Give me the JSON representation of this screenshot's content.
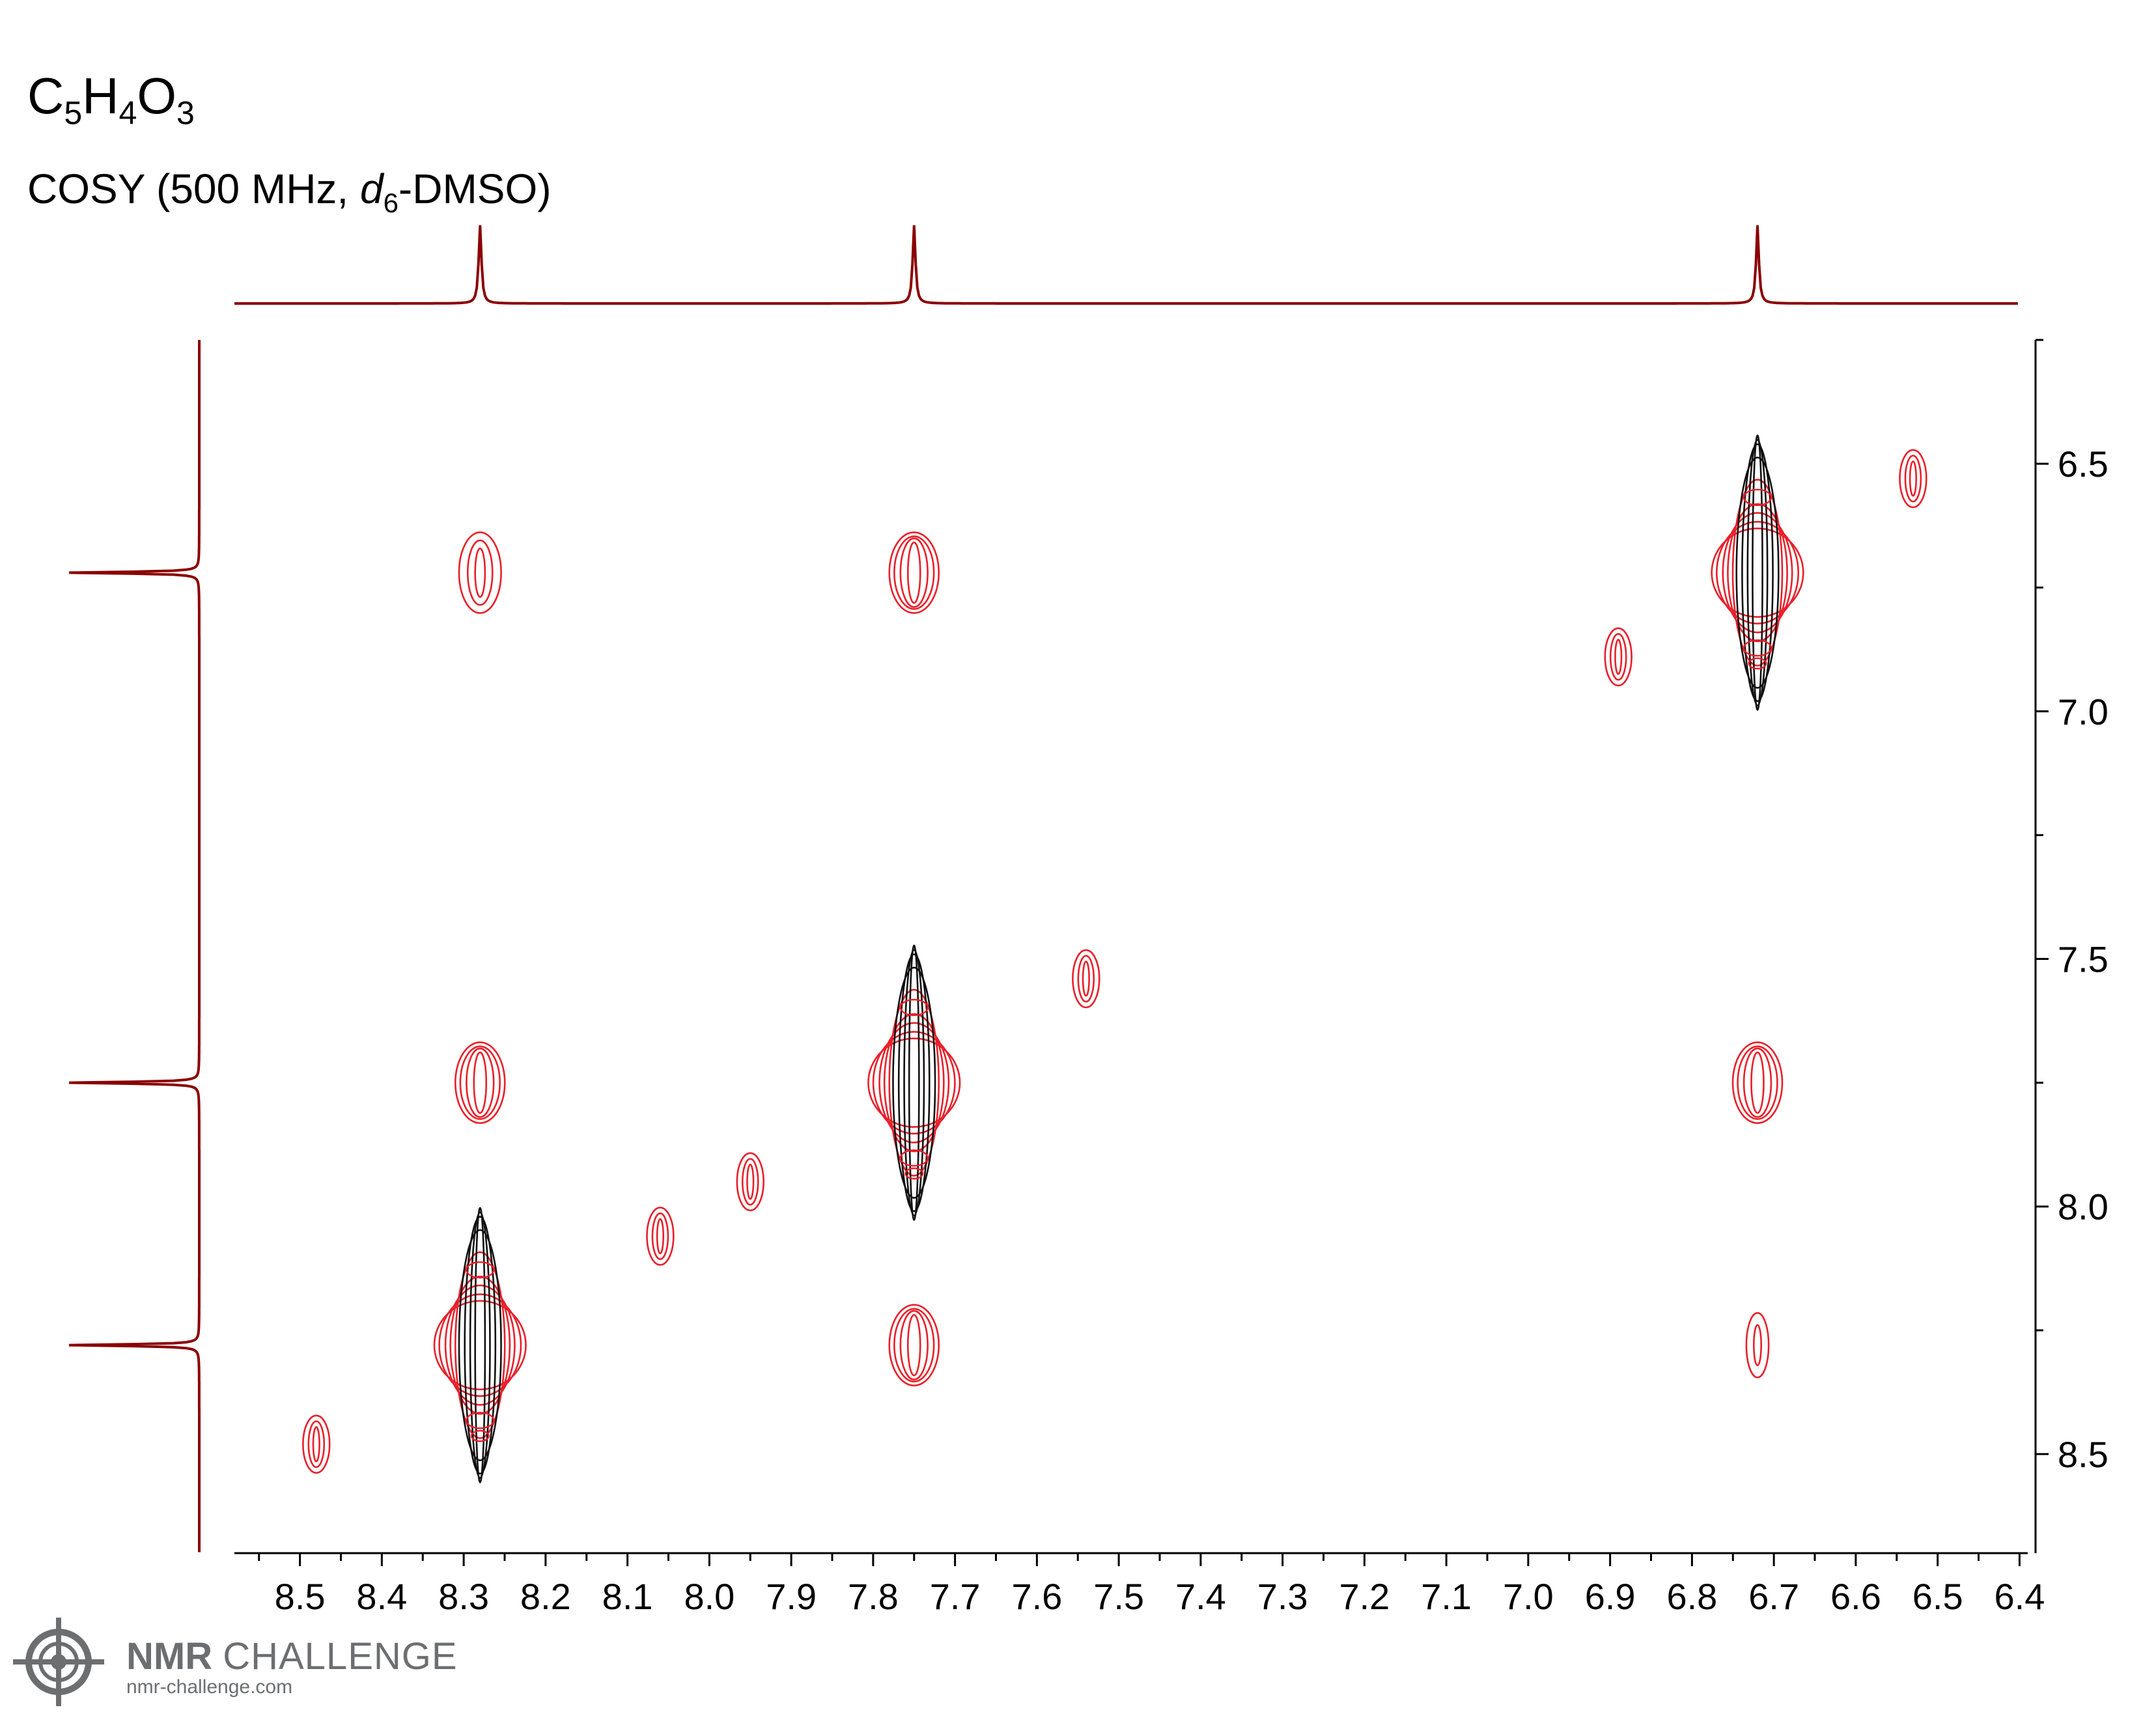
{
  "header": {
    "formula": {
      "c": "C",
      "c_n": "5",
      "h": "H",
      "h_n": "4",
      "o": "O",
      "o_n": "3"
    },
    "subtitle": {
      "prefix": "COSY (500 MHz, ",
      "solvent_italic": "d",
      "solvent_sub": "6",
      "suffix": "-DMSO)"
    }
  },
  "chart_data": {
    "type": "contour",
    "experiment": "COSY",
    "x_axis": {
      "range": [
        8.58,
        6.39
      ],
      "reversed": true,
      "tick_labels": [
        "8.5",
        "8.4",
        "8.3",
        "8.2",
        "8.1",
        "8.0",
        "7.9",
        "7.8",
        "7.7",
        "7.6",
        "7.5",
        "7.4",
        "7.3",
        "7.2",
        "7.1",
        "7.0",
        "6.9",
        "6.8",
        "6.7",
        "6.6",
        "6.5",
        "6.4"
      ],
      "xlabel": ""
    },
    "y_axis": {
      "range": [
        6.25,
        8.7
      ],
      "reversed": true,
      "side": "right",
      "tick_labels": [
        "6.5",
        "7.0",
        "7.5",
        "8.0",
        "8.5"
      ],
      "ylabel": ""
    },
    "projection_peaks_ppm": [
      8.28,
      7.75,
      6.72
    ],
    "peaks": [
      {
        "x": 8.28,
        "y": 8.28,
        "kind": "diagonal",
        "intensity": "strong"
      },
      {
        "x": 7.75,
        "y": 7.75,
        "kind": "diagonal",
        "intensity": "strong"
      },
      {
        "x": 6.72,
        "y": 6.72,
        "kind": "diagonal",
        "intensity": "strong"
      },
      {
        "x": 8.28,
        "y": 7.75,
        "kind": "cross",
        "intensity": "medium"
      },
      {
        "x": 7.75,
        "y": 8.28,
        "kind": "cross",
        "intensity": "medium"
      },
      {
        "x": 8.28,
        "y": 6.72,
        "kind": "cross",
        "intensity": "weak"
      },
      {
        "x": 6.72,
        "y": 8.28,
        "kind": "cross",
        "intensity": "very weak"
      },
      {
        "x": 7.75,
        "y": 6.72,
        "kind": "cross",
        "intensity": "medium"
      },
      {
        "x": 6.72,
        "y": 7.75,
        "kind": "cross",
        "intensity": "medium"
      },
      {
        "x": 8.48,
        "y": 8.48,
        "kind": "artifact",
        "intensity": "weak"
      },
      {
        "x": 8.06,
        "y": 8.06,
        "kind": "artifact",
        "intensity": "weak"
      },
      {
        "x": 7.95,
        "y": 7.95,
        "kind": "artifact",
        "intensity": "weak"
      },
      {
        "x": 7.54,
        "y": 7.54,
        "kind": "artifact",
        "intensity": "weak"
      },
      {
        "x": 6.89,
        "y": 6.89,
        "kind": "artifact",
        "intensity": "weak"
      },
      {
        "x": 6.53,
        "y": 6.53,
        "kind": "artifact",
        "intensity": "weak"
      }
    ],
    "colors": {
      "contour": "#e8202a",
      "contour_core": "#111111",
      "projection": "#8b0000",
      "axis": "#000000"
    }
  },
  "logo": {
    "name_bold": "NMR",
    "name_light": "CHALLENGE",
    "url": "nmr-challenge.com"
  }
}
